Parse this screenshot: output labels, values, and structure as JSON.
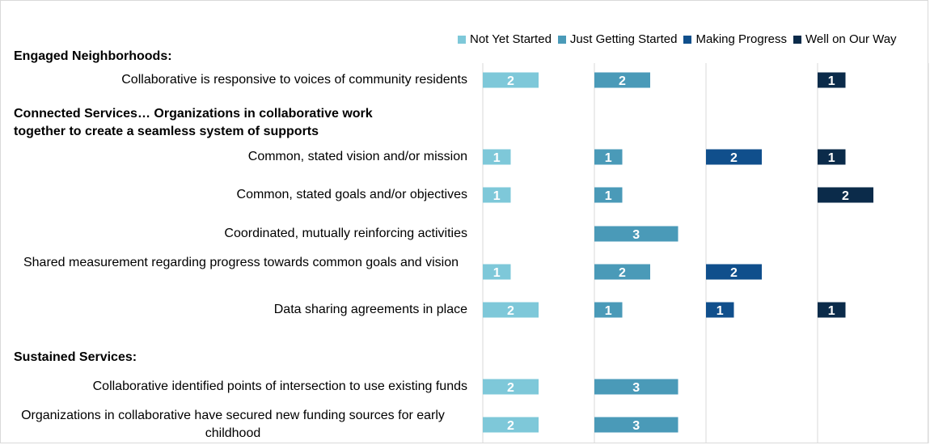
{
  "chart_data": {
    "type": "bar",
    "legend_position": "top-right",
    "series": [
      {
        "name": "Not Yet Started",
        "color": "#7ec8d9"
      },
      {
        "name": "Just Getting Started",
        "color": "#4a9ab8"
      },
      {
        "name": "Making Progress",
        "color": "#104f8c"
      },
      {
        "name": "Well on Our Way",
        "color": "#0b2b4a"
      }
    ],
    "sections": [
      {
        "heading": "Engaged Neighborhoods:",
        "rows": [
          {
            "label": "Collaborative is responsive to voices of community residents",
            "values": [
              2,
              2,
              null,
              1
            ]
          }
        ]
      },
      {
        "heading": "Connected Services… Organizations in collaborative work together to create a seamless system of supports",
        "rows": [
          {
            "label": "Common, stated vision and/or mission",
            "values": [
              1,
              1,
              2,
              1
            ]
          },
          {
            "label": "Common, stated goals and/or objectives",
            "values": [
              1,
              1,
              null,
              2
            ]
          },
          {
            "label": "Coordinated, mutually reinforcing activities",
            "values": [
              null,
              3,
              null,
              null
            ]
          },
          {
            "label": "Shared measurement regarding progress towards common goals and vision",
            "values": [
              1,
              2,
              2,
              null
            ]
          },
          {
            "label": "Data sharing agreements in place",
            "values": [
              2,
              1,
              1,
              1
            ]
          }
        ]
      },
      {
        "heading": "Sustained Services:",
        "rows": [
          {
            "label": "Collaborative identified points of intersection to use existing funds",
            "values": [
              2,
              3,
              null,
              null
            ]
          },
          {
            "label": "Organizations in collaborative have secured new funding sources for early childhood",
            "values": [
              2,
              3,
              null,
              null
            ]
          }
        ]
      }
    ]
  }
}
